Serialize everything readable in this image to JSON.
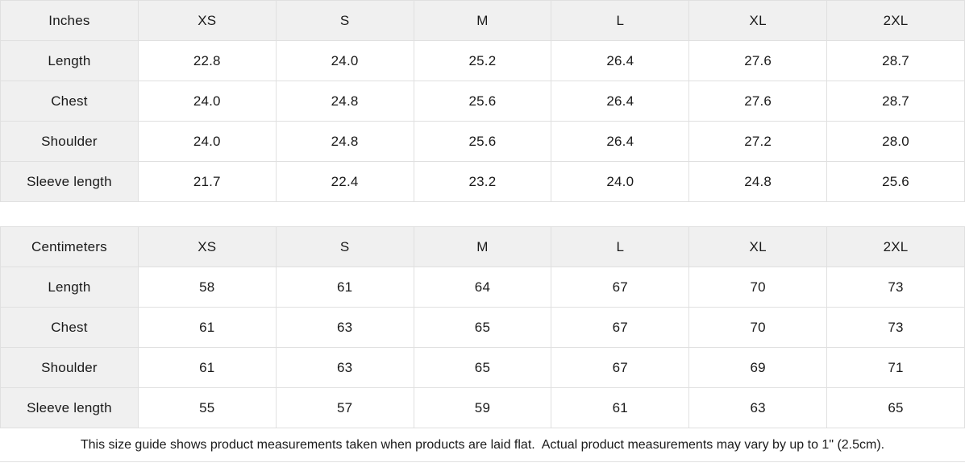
{
  "colors": {
    "header_background": "#f0f0f0",
    "gridline": "#e0e0e0",
    "text": "#1a1a1a",
    "cell_background": "#ffffff"
  },
  "tables": [
    {
      "unit_label": "Inches",
      "sizes": [
        "XS",
        "S",
        "M",
        "L",
        "XL",
        "2XL"
      ],
      "rows": [
        {
          "label": "Length",
          "values": [
            "22.8",
            "24.0",
            "25.2",
            "26.4",
            "27.6",
            "28.7"
          ]
        },
        {
          "label": "Chest",
          "values": [
            "24.0",
            "24.8",
            "25.6",
            "26.4",
            "27.6",
            "28.7"
          ]
        },
        {
          "label": "Shoulder",
          "values": [
            "24.0",
            "24.8",
            "25.6",
            "26.4",
            "27.2",
            "28.0"
          ]
        },
        {
          "label": "Sleeve length",
          "values": [
            "21.7",
            "22.4",
            "23.2",
            "24.0",
            "24.8",
            "25.6"
          ]
        }
      ]
    },
    {
      "unit_label": "Centimeters",
      "sizes": [
        "XS",
        "S",
        "M",
        "L",
        "XL",
        "2XL"
      ],
      "rows": [
        {
          "label": "Length",
          "values": [
            "58",
            "61",
            "64",
            "67",
            "70",
            "73"
          ]
        },
        {
          "label": "Chest",
          "values": [
            "61",
            "63",
            "65",
            "67",
            "70",
            "73"
          ]
        },
        {
          "label": "Shoulder",
          "values": [
            "61",
            "63",
            "65",
            "67",
            "69",
            "71"
          ]
        },
        {
          "label": "Sleeve length",
          "values": [
            "55",
            "57",
            "59",
            "61",
            "63",
            "65"
          ]
        }
      ]
    }
  ],
  "footer": {
    "note": "This size guide shows product measurements taken when products are laid flat.  Actual product measurements may vary by up to 1\" (2.5cm)."
  }
}
